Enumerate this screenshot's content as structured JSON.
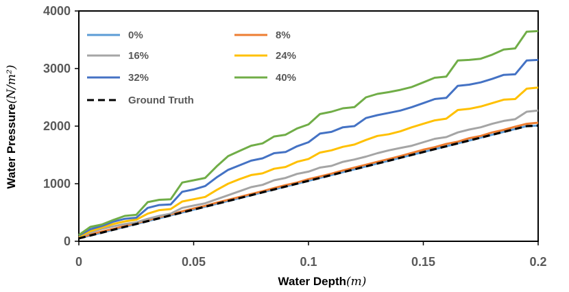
{
  "chart_data": {
    "type": "line",
    "title": "",
    "xlabel": {
      "text": "Water Depth",
      "unit": "(m)"
    },
    "ylabel": {
      "text": "Water Pressure",
      "unit": "(N/m²)"
    },
    "xlim": [
      0,
      0.2
    ],
    "ylim": [
      0,
      4000
    ],
    "xticks": [
      0,
      0.05,
      0.1,
      0.15,
      0.2
    ],
    "xtick_labels": [
      "0",
      "0.05",
      "0.1",
      "0.15",
      "0.2"
    ],
    "yticks": [
      0,
      1000,
      2000,
      3000,
      4000
    ],
    "ytick_labels": [
      "0",
      "1000",
      "2000",
      "3000",
      "4000"
    ],
    "grid": false,
    "legend_position": "top-left",
    "x": [
      0,
      0.005,
      0.01,
      0.015,
      0.02,
      0.025,
      0.03,
      0.035,
      0.04,
      0.045,
      0.05,
      0.055,
      0.06,
      0.065,
      0.07,
      0.075,
      0.08,
      0.085,
      0.09,
      0.095,
      0.1,
      0.105,
      0.11,
      0.115,
      0.12,
      0.125,
      0.13,
      0.135,
      0.14,
      0.145,
      0.15,
      0.155,
      0.16,
      0.165,
      0.17,
      0.175,
      0.18,
      0.185,
      0.19,
      0.195,
      0.2
    ],
    "series": [
      {
        "name": "0%",
        "color": "#5b9bd5",
        "dashed": false,
        "values": [
          50,
          100,
          150,
          200,
          250,
          300,
          350,
          400,
          450,
          500,
          550,
          600,
          650,
          700,
          750,
          800,
          850,
          900,
          950,
          1000,
          1050,
          1100,
          1150,
          1200,
          1250,
          1300,
          1350,
          1400,
          1450,
          1500,
          1550,
          1600,
          1650,
          1700,
          1750,
          1800,
          1850,
          1900,
          1950,
          2000,
          2010
        ]
      },
      {
        "name": "8%",
        "color": "#ed7d31",
        "dashed": false,
        "values": [
          55,
          115,
          170,
          215,
          265,
          315,
          365,
          420,
          465,
          520,
          570,
          615,
          670,
          720,
          770,
          820,
          870,
          925,
          975,
          1020,
          1080,
          1125,
          1175,
          1230,
          1280,
          1330,
          1380,
          1430,
          1480,
          1535,
          1590,
          1635,
          1690,
          1730,
          1790,
          1830,
          1890,
          1935,
          1990,
          2040,
          2060
        ]
      },
      {
        "name": "16%",
        "color": "#a5a5a5",
        "dashed": false,
        "values": [
          70,
          150,
          215,
          260,
          300,
          330,
          390,
          440,
          480,
          580,
          620,
          660,
          730,
          800,
          870,
          940,
          980,
          1060,
          1100,
          1170,
          1210,
          1280,
          1310,
          1380,
          1420,
          1470,
          1530,
          1580,
          1620,
          1660,
          1720,
          1780,
          1810,
          1890,
          1940,
          1980,
          2040,
          2090,
          2120,
          2250,
          2270
        ]
      },
      {
        "name": "24%",
        "color": "#ffc000",
        "dashed": false,
        "values": [
          80,
          175,
          240,
          300,
          345,
          375,
          480,
          540,
          560,
          690,
          730,
          770,
          890,
          1000,
          1080,
          1150,
          1180,
          1260,
          1290,
          1380,
          1430,
          1540,
          1580,
          1640,
          1680,
          1760,
          1830,
          1860,
          1910,
          1980,
          2040,
          2100,
          2130,
          2280,
          2300,
          2340,
          2400,
          2460,
          2470,
          2650,
          2670
        ]
      },
      {
        "name": "32%",
        "color": "#4472c4",
        "dashed": false,
        "values": [
          100,
          210,
          265,
          340,
          390,
          410,
          580,
          630,
          640,
          860,
          900,
          960,
          1110,
          1240,
          1320,
          1400,
          1440,
          1530,
          1550,
          1650,
          1720,
          1870,
          1900,
          1980,
          2000,
          2140,
          2190,
          2230,
          2270,
          2330,
          2400,
          2470,
          2490,
          2700,
          2720,
          2760,
          2820,
          2890,
          2900,
          3140,
          3150
        ]
      },
      {
        "name": "40%",
        "color": "#70ad47",
        "dashed": false,
        "values": [
          110,
          250,
          290,
          370,
          440,
          460,
          680,
          720,
          730,
          1020,
          1060,
          1100,
          1300,
          1480,
          1570,
          1660,
          1700,
          1820,
          1850,
          1960,
          2030,
          2210,
          2250,
          2310,
          2330,
          2500,
          2560,
          2590,
          2630,
          2680,
          2760,
          2840,
          2860,
          3140,
          3150,
          3170,
          3240,
          3330,
          3350,
          3640,
          3650
        ]
      },
      {
        "name": "Ground Truth",
        "color": "#000000",
        "dashed": true,
        "values": [
          50,
          100,
          150,
          200,
          250,
          300,
          350,
          400,
          450,
          500,
          550,
          600,
          650,
          700,
          750,
          800,
          850,
          900,
          950,
          1000,
          1050,
          1100,
          1150,
          1200,
          1250,
          1300,
          1350,
          1400,
          1450,
          1500,
          1550,
          1600,
          1650,
          1700,
          1750,
          1800,
          1850,
          1900,
          1950,
          2000,
          2010
        ]
      }
    ]
  }
}
